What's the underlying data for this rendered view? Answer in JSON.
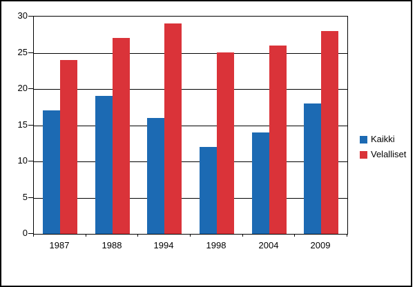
{
  "chart_data": {
    "type": "bar",
    "categories": [
      "1987",
      "1988",
      "1994",
      "1998",
      "2004",
      "2009"
    ],
    "series": [
      {
        "name": "Kaikki",
        "color": "#1C6AB3",
        "values": [
          17,
          19,
          16,
          12,
          14,
          18
        ]
      },
      {
        "name": "Velalliset",
        "color": "#DA3339",
        "values": [
          24,
          27,
          29,
          25,
          26,
          28
        ]
      }
    ],
    "title": "",
    "xlabel": "",
    "ylabel": "",
    "ylim": [
      0,
      30
    ],
    "ytick_step": 5,
    "grid": true,
    "legend_position": "right",
    "plot_border_color": "#000000",
    "background_color": "#ffffff"
  },
  "legend": {
    "items": [
      {
        "label": "Kaikki",
        "swatch": "blue-square-icon",
        "color": "#1C6AB3"
      },
      {
        "label": "Velalliset",
        "swatch": "red-square-icon",
        "color": "#DA3339"
      }
    ]
  }
}
